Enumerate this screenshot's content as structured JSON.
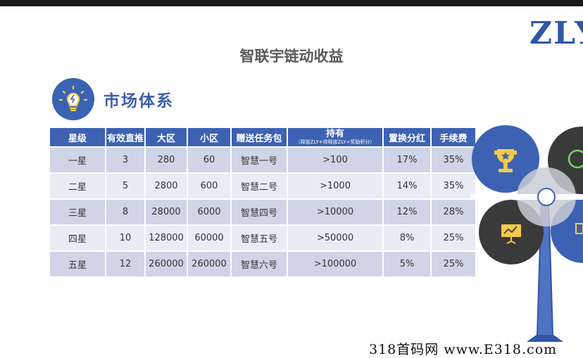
{
  "header": {
    "title": "智联宇链动收益",
    "logo_text": "ZLY"
  },
  "section": {
    "title": "市场体系",
    "icon": "lightbulb-icon"
  },
  "table": {
    "columns": [
      "星级",
      "有效直推",
      "大区",
      "小区",
      "赠送任务包",
      "持有",
      "置换分红",
      "手续费"
    ],
    "holding_sub": "（释放ZLY+待释放ZLY+奖励积分）",
    "rows": [
      [
        "一星",
        "3",
        "280",
        "60",
        "智慧一号",
        ">100",
        "17%",
        "35%"
      ],
      [
        "二星",
        "5",
        "2800",
        "600",
        "智慧二号",
        ">1000",
        "14%",
        "35%"
      ],
      [
        "三星",
        "8",
        "28000",
        "6000",
        "智慧四号",
        ">10000",
        "12%",
        "28%"
      ],
      [
        "四星",
        "10",
        "128000",
        "60000",
        "智慧五号",
        ">50000",
        "8%",
        "25%"
      ],
      [
        "五星",
        "12",
        "260000",
        "260000",
        "智慧六号",
        ">100000",
        "5%",
        "25%"
      ]
    ]
  },
  "graphic": {
    "icons": [
      "trophy-icon",
      "clock-icon",
      "presentation-icon",
      "chart-icon"
    ]
  },
  "colors": {
    "accent": "#3d62b3",
    "dark": "#3a3a3a",
    "row_odd": "#cfd5e6",
    "row_even": "#e9ecf4"
  },
  "watermark": "318首码网 www.E318.com"
}
